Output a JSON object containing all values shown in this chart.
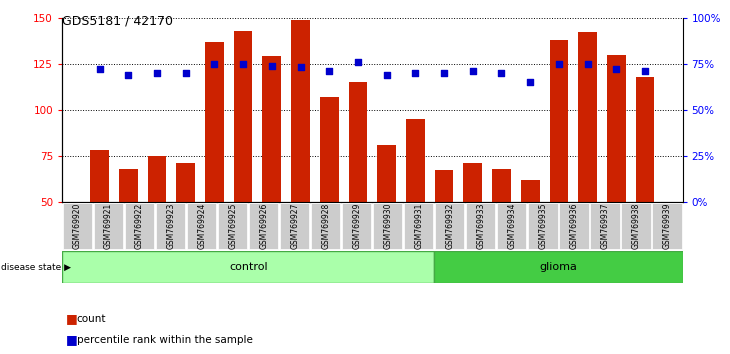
{
  "title": "GDS5181 / 42170",
  "samples": [
    "GSM769920",
    "GSM769921",
    "GSM769922",
    "GSM769923",
    "GSM769924",
    "GSM769925",
    "GSM769926",
    "GSM769927",
    "GSM769928",
    "GSM769929",
    "GSM769930",
    "GSM769931",
    "GSM769932",
    "GSM769933",
    "GSM769934",
    "GSM769935",
    "GSM769936",
    "GSM769937",
    "GSM769938",
    "GSM769939"
  ],
  "counts": [
    78,
    68,
    75,
    71,
    137,
    143,
    129,
    149,
    107,
    115,
    81,
    95,
    67,
    71,
    68,
    62,
    138,
    142,
    130,
    118
  ],
  "percentiles": [
    72,
    69,
    70,
    70,
    75,
    75,
    74,
    73,
    71,
    76,
    69,
    70,
    70,
    71,
    70,
    65,
    75,
    75,
    72,
    71
  ],
  "control_count": 12,
  "glioma_count": 8,
  "ylim_left": [
    50,
    150
  ],
  "ylim_right": [
    0,
    100
  ],
  "yticks_left": [
    50,
    75,
    100,
    125,
    150
  ],
  "yticks_right": [
    0,
    25,
    50,
    75,
    100
  ],
  "bar_color": "#CC2200",
  "dot_color": "#0000CC",
  "control_color": "#AAFFAA",
  "glioma_color": "#44CC44",
  "tick_bg": "#CCCCCC",
  "legend_count_label": "count",
  "legend_pct_label": "percentile rank within the sample",
  "disease_label": "disease state",
  "control_label": "control",
  "glioma_label": "glioma"
}
